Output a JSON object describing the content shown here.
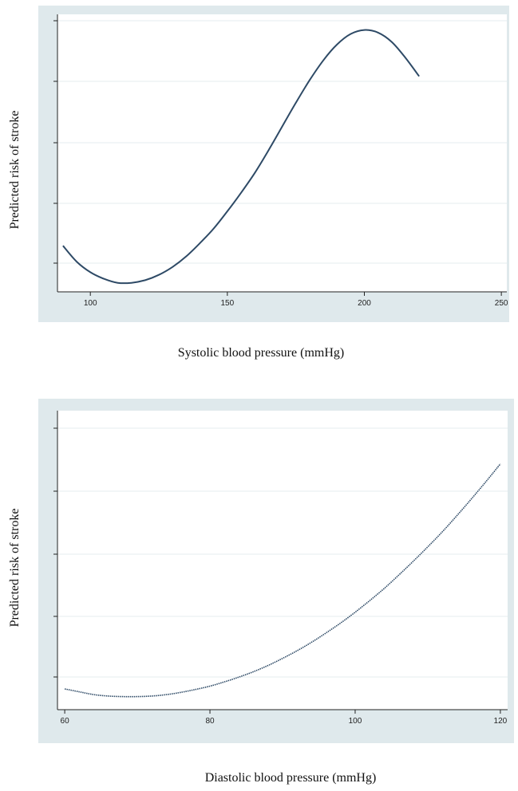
{
  "chart_data": [
    {
      "type": "line",
      "title": "",
      "xlabel": "Systolic blood pressure (mmHg)",
      "ylabel": "Predicted risk of stroke",
      "xlim": [
        88,
        252
      ],
      "xticks": [
        100,
        150,
        200,
        250
      ],
      "ylim": [
        0,
        1
      ],
      "ytick_count": 5,
      "grid": true,
      "series": [
        {
          "x": [
            90,
            95,
            100,
            105,
            110,
            115,
            120,
            125,
            130,
            135,
            140,
            145,
            150,
            155,
            160,
            165,
            170,
            175,
            180,
            185,
            190,
            195,
            200,
            205,
            210,
            215,
            220
          ],
          "y": [
            0.15,
            0.09,
            0.05,
            0.025,
            0.01,
            0.01,
            0.02,
            0.04,
            0.07,
            0.11,
            0.16,
            0.215,
            0.28,
            0.35,
            0.425,
            0.51,
            0.6,
            0.69,
            0.775,
            0.85,
            0.91,
            0.95,
            0.965,
            0.955,
            0.92,
            0.86,
            0.79
          ]
        }
      ]
    },
    {
      "type": "line",
      "title": "",
      "xlabel": "Diastolic blood pressure (mmHg)",
      "ylabel": "Predicted risk of stroke",
      "xlim": [
        59,
        121
      ],
      "xticks": [
        60,
        80,
        100,
        120
      ],
      "ylim": [
        0,
        1
      ],
      "ytick_count": 5,
      "grid": true,
      "series": [
        {
          "x": [
            60,
            62,
            64,
            66,
            68,
            70,
            72,
            74,
            76,
            78,
            80,
            82,
            84,
            86,
            88,
            90,
            92,
            94,
            96,
            98,
            100,
            102,
            104,
            106,
            108,
            110,
            112,
            114,
            116,
            118,
            120
          ],
          "y": [
            0.045,
            0.035,
            0.025,
            0.02,
            0.018,
            0.018,
            0.02,
            0.025,
            0.033,
            0.043,
            0.055,
            0.07,
            0.087,
            0.106,
            0.128,
            0.153,
            0.18,
            0.21,
            0.243,
            0.278,
            0.316,
            0.357,
            0.4,
            0.447,
            0.496,
            0.547,
            0.6,
            0.657,
            0.716,
            0.777,
            0.84
          ]
        }
      ]
    }
  ]
}
